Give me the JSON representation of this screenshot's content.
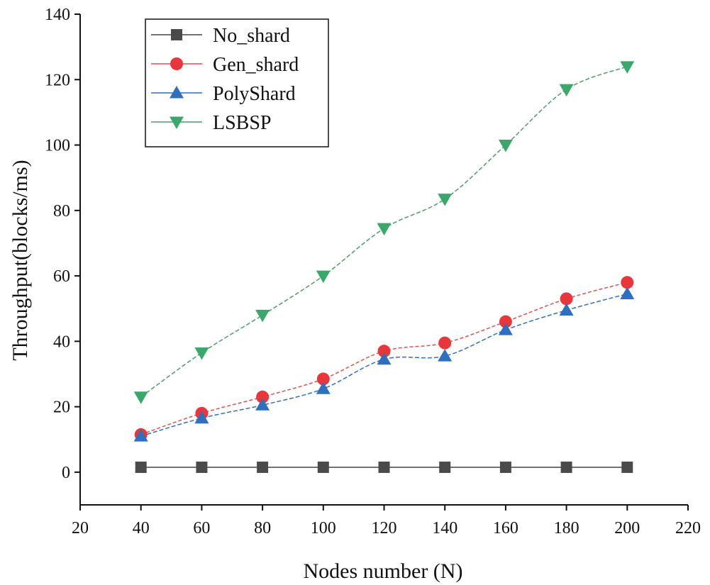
{
  "chart_data": {
    "type": "line",
    "title": "",
    "xlabel": "Nodes number (N)",
    "ylabel": "Throughput(blocks/ms)",
    "xlim": [
      20,
      220
    ],
    "ylim": [
      -10,
      140
    ],
    "xticks": [
      20,
      40,
      60,
      80,
      100,
      120,
      140,
      160,
      180,
      200,
      220
    ],
    "yticks": [
      0,
      20,
      40,
      60,
      80,
      100,
      120,
      140
    ],
    "grid": false,
    "legend_position": "top-left",
    "x": [
      40,
      60,
      80,
      100,
      120,
      140,
      160,
      180,
      200
    ],
    "series": [
      {
        "name": "No_shard",
        "marker": "square",
        "color": "#4a4a4a",
        "line_color": "#444444",
        "values": [
          1.5,
          1.5,
          1.5,
          1.5,
          1.5,
          1.5,
          1.5,
          1.5,
          1.5
        ]
      },
      {
        "name": "Gen_shard",
        "marker": "circle",
        "color": "#e8363a",
        "line_color": "#d9534f",
        "values": [
          11.5,
          18,
          23,
          28.5,
          37,
          39.5,
          46,
          53,
          58
        ]
      },
      {
        "name": "PolyShard",
        "marker": "triangle-up",
        "color": "#2f6fc0",
        "line_color": "#2f6fc0",
        "values": [
          11,
          16.5,
          20.5,
          25.5,
          34.5,
          35.5,
          43.5,
          49.5,
          54.5
        ]
      },
      {
        "name": "LSBSP",
        "marker": "triangle-down",
        "color": "#3aa86a",
        "line_color": "#4f9a6a",
        "values": [
          23,
          36.5,
          48,
          60,
          74.5,
          83.5,
          100,
          117,
          124
        ]
      }
    ]
  }
}
